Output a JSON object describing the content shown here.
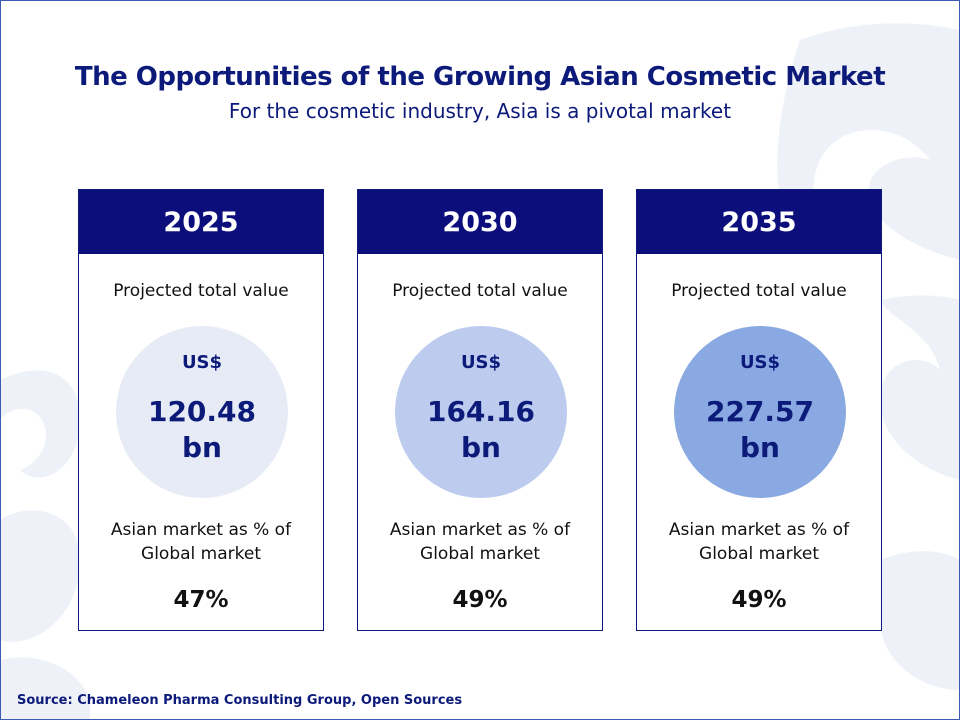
{
  "title": "The Opportunities of the Growing Asian Cosmetic Market",
  "subtitle": "For the cosmetic industry, Asia is a pivotal market",
  "cards": [
    {
      "year": "2025",
      "value_label": "Projected total value",
      "currency": "US$",
      "value": "120.48",
      "unit": "bn",
      "share_label_line1": "Asian market as % of",
      "share_label_line2": "Global market",
      "share": "47%",
      "circle_color": "#e6ebf6"
    },
    {
      "year": "2030",
      "value_label": "Projected total value",
      "currency": "US$",
      "value": "164.16",
      "unit": "bn",
      "share_label_line1": "Asian market as % of",
      "share_label_line2": "Global market",
      "share": "49%",
      "circle_color": "#bccbee"
    },
    {
      "year": "2035",
      "value_label": "Projected total value",
      "currency": "US$",
      "value": "227.57",
      "unit": "bn",
      "share_label_line1": "Asian market as % of",
      "share_label_line2": "Global market",
      "share": "49%",
      "circle_color": "#8aa9e2"
    }
  ],
  "source": "Source: Chameleon Pharma Consulting Group, Open Sources",
  "colors": {
    "brand_navy": "#0c0e7c",
    "decoration": "#eef1f7"
  }
}
